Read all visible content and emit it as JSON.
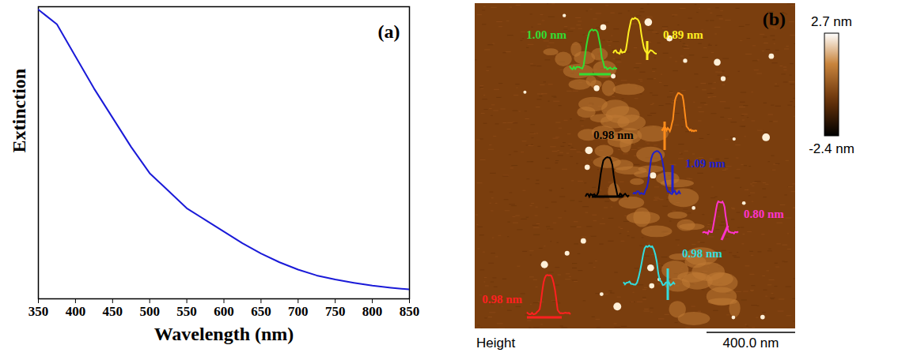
{
  "chart_data": [
    {
      "type": "line",
      "title": "(a)",
      "xlabel": "Wavelength (nm)",
      "ylabel": "Extinction",
      "x": [
        350,
        360,
        375,
        400,
        425,
        450,
        475,
        500,
        525,
        550,
        575,
        600,
        625,
        650,
        675,
        700,
        725,
        750,
        775,
        800,
        825,
        850
      ],
      "values": [
        0.99,
        0.97,
        0.94,
        0.83,
        0.72,
        0.62,
        0.52,
        0.43,
        0.37,
        0.31,
        0.27,
        0.23,
        0.19,
        0.155,
        0.125,
        0.1,
        0.08,
        0.066,
        0.055,
        0.045,
        0.038,
        0.032
      ],
      "color": "#1a1ad8",
      "xlim": [
        350,
        850
      ],
      "xticks": [
        350,
        400,
        450,
        500,
        550,
        600,
        650,
        700,
        750,
        800,
        850
      ],
      "ylim": [
        0,
        1
      ],
      "yticks": [],
      "tick_labels": "x"
    },
    {
      "type": "image",
      "title": "(b)",
      "channel": "Height",
      "scale_bar": "400.0 nm",
      "colorbar": {
        "range": [
          -2.4,
          2.7
        ],
        "ticks": [
          {
            "value": 2.7,
            "label": "2.7 nm"
          },
          {
            "value": -2.4,
            "label": "-2.4 nm"
          }
        ]
      },
      "profiles": [
        {
          "height": 1.0,
          "label": "1.00 nm",
          "color": "#33dd33"
        },
        {
          "height": 0.89,
          "label": "0.89 nm",
          "color": "#ffee22"
        },
        {
          "height": null,
          "label": null,
          "color": "#ff8c1a"
        },
        {
          "height": 0.98,
          "label": "0.98 nm",
          "color": "#000000"
        },
        {
          "height": 1.09,
          "label": "1.09 nm",
          "color": "#2020cc"
        },
        {
          "height": 0.8,
          "label": "0.80 nm",
          "color": "#ff33cc"
        },
        {
          "height": 0.98,
          "label": "0.98 nm",
          "color": "#33dddd"
        },
        {
          "height": 0.98,
          "label": "0.98 nm",
          "color": "#ff2020"
        }
      ]
    }
  ]
}
